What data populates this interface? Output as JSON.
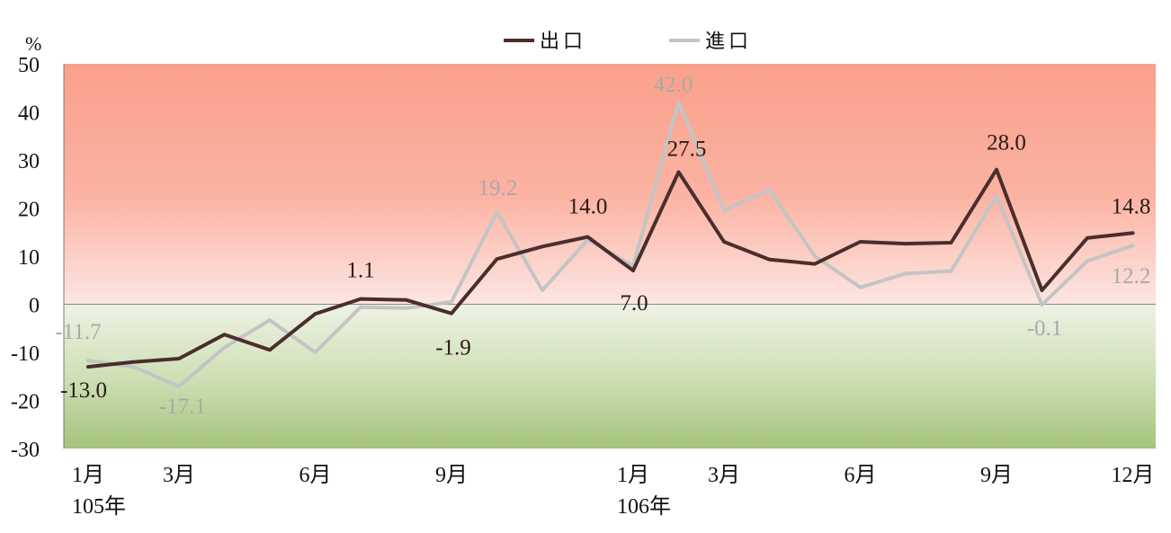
{
  "chart_data": {
    "type": "line",
    "y_unit": "%",
    "ylim": [
      -30,
      50
    ],
    "yticks": [
      50,
      40,
      30,
      20,
      10,
      0,
      -10,
      -20,
      -30
    ],
    "grid": false,
    "legend_position": "top-center",
    "x_tick_labels": [
      {
        "index": 0,
        "label": "1月"
      },
      {
        "index": 2,
        "label": "3月"
      },
      {
        "index": 5,
        "label": "6月"
      },
      {
        "index": 8,
        "label": "9月"
      },
      {
        "index": 12,
        "label": "1月"
      },
      {
        "index": 14,
        "label": "3月"
      },
      {
        "index": 17,
        "label": "6月"
      },
      {
        "index": 20,
        "label": "9月"
      },
      {
        "index": 23,
        "label": "12月"
      }
    ],
    "year_labels": [
      {
        "index": 0,
        "label": "105年"
      },
      {
        "index": 12,
        "label": "106年"
      }
    ],
    "background_bands": {
      "positive": "#f9a08a",
      "negative": "#a9c784"
    },
    "series": [
      {
        "name": "出口",
        "color": "#4a2e2b",
        "values": [
          -13.0,
          -12.0,
          -11.3,
          -6.3,
          -9.5,
          -2.0,
          1.1,
          0.9,
          -1.9,
          9.4,
          12.0,
          14.0,
          7.0,
          27.5,
          13.0,
          9.3,
          8.4,
          13.0,
          12.6,
          12.8,
          28.0,
          2.9,
          13.8,
          14.8
        ],
        "data_labels": [
          {
            "index": 0,
            "text": "-13.0"
          },
          {
            "index": 6,
            "text": "1.1"
          },
          {
            "index": 8,
            "text": "-1.9"
          },
          {
            "index": 11,
            "text": "14.0"
          },
          {
            "index": 12,
            "text": "7.0"
          },
          {
            "index": 13,
            "text": "27.5"
          },
          {
            "index": 20,
            "text": "28.0"
          },
          {
            "index": 23,
            "text": "14.8"
          }
        ]
      },
      {
        "name": "進口",
        "color": "#c4c4c4",
        "values": [
          -11.7,
          -13.0,
          -17.1,
          -9.0,
          -3.3,
          -10.0,
          -0.6,
          -0.8,
          0.5,
          19.2,
          2.9,
          13.4,
          8.0,
          42.0,
          19.5,
          23.8,
          10.0,
          3.5,
          6.4,
          6.9,
          22.5,
          -0.1,
          9.0,
          12.2
        ],
        "data_labels": [
          {
            "index": 0,
            "text": "-11.7"
          },
          {
            "index": 2,
            "text": "-17.1"
          },
          {
            "index": 9,
            "text": "19.2"
          },
          {
            "index": 13,
            "text": "42.0"
          },
          {
            "index": 21,
            "text": "-0.1"
          },
          {
            "index": 23,
            "text": "12.2"
          }
        ]
      }
    ]
  }
}
